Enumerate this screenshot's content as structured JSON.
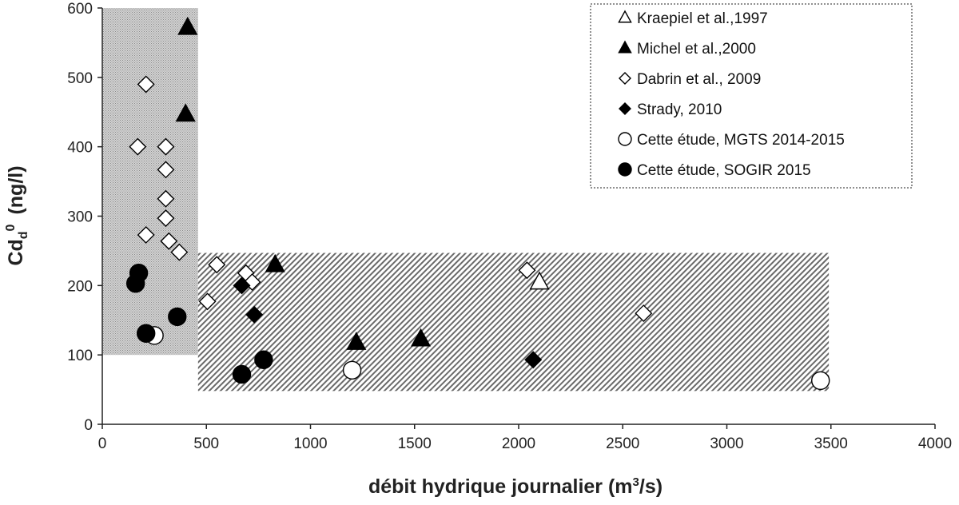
{
  "chart_data": {
    "type": "scatter",
    "xlabel": "débit hydrique journalier (m³/s)",
    "xlabel_parts": {
      "main": "débit hydrique journalier (m",
      "sup": "3",
      "tail": "/s)"
    },
    "ylabel_parts": {
      "base": "Cd",
      "sub": "d",
      "sup": "0",
      "units": "(ng/l)"
    },
    "xlim": [
      0,
      4000
    ],
    "ylim": [
      0,
      600
    ],
    "x_ticks": [
      0,
      500,
      1000,
      1500,
      2000,
      2500,
      3000,
      3500,
      4000
    ],
    "y_ticks": [
      0,
      100,
      200,
      300,
      400,
      500,
      600
    ],
    "grid": false,
    "legend_position": "top-right",
    "regions": [
      {
        "pattern": "dots",
        "x": [
          0,
          460
        ],
        "y": [
          100,
          600
        ]
      },
      {
        "pattern": "diagonal",
        "x": [
          460,
          3490
        ],
        "y": [
          48,
          247
        ]
      }
    ],
    "series": [
      {
        "name": "Kraepiel et al.,1997",
        "marker": "triangle-open",
        "points": [
          [
            2100,
            205
          ]
        ]
      },
      {
        "name": "Michel et al.,2000",
        "marker": "triangle-filled",
        "points": [
          [
            410,
            572
          ],
          [
            400,
            447
          ],
          [
            830,
            230
          ],
          [
            1220,
            118
          ],
          [
            1530,
            123
          ]
        ]
      },
      {
        "name": "Dabrin et al., 2009",
        "marker": "diamond-open",
        "points": [
          [
            210,
            490
          ],
          [
            170,
            400
          ],
          [
            305,
            400
          ],
          [
            305,
            367
          ],
          [
            305,
            325
          ],
          [
            305,
            297
          ],
          [
            210,
            273
          ],
          [
            320,
            264
          ],
          [
            370,
            248
          ],
          [
            550,
            230
          ],
          [
            690,
            218
          ],
          [
            720,
            205
          ],
          [
            505,
            177
          ],
          [
            2040,
            222
          ],
          [
            2600,
            160
          ]
        ]
      },
      {
        "name": "Strady, 2010",
        "marker": "diamond-filled",
        "points": [
          [
            670,
            200
          ],
          [
            730,
            158
          ],
          [
            2070,
            93
          ]
        ]
      },
      {
        "name": "Cette étude, MGTS 2014-2015",
        "marker": "circle-open",
        "points": [
          [
            250,
            128
          ],
          [
            1200,
            78
          ],
          [
            3450,
            63
          ]
        ]
      },
      {
        "name": "Cette étude, SOGIR 2015",
        "marker": "circle-filled",
        "points": [
          [
            175,
            218
          ],
          [
            160,
            203
          ],
          [
            210,
            131
          ],
          [
            360,
            155
          ],
          [
            670,
            72
          ],
          [
            775,
            93
          ]
        ]
      }
    ]
  }
}
